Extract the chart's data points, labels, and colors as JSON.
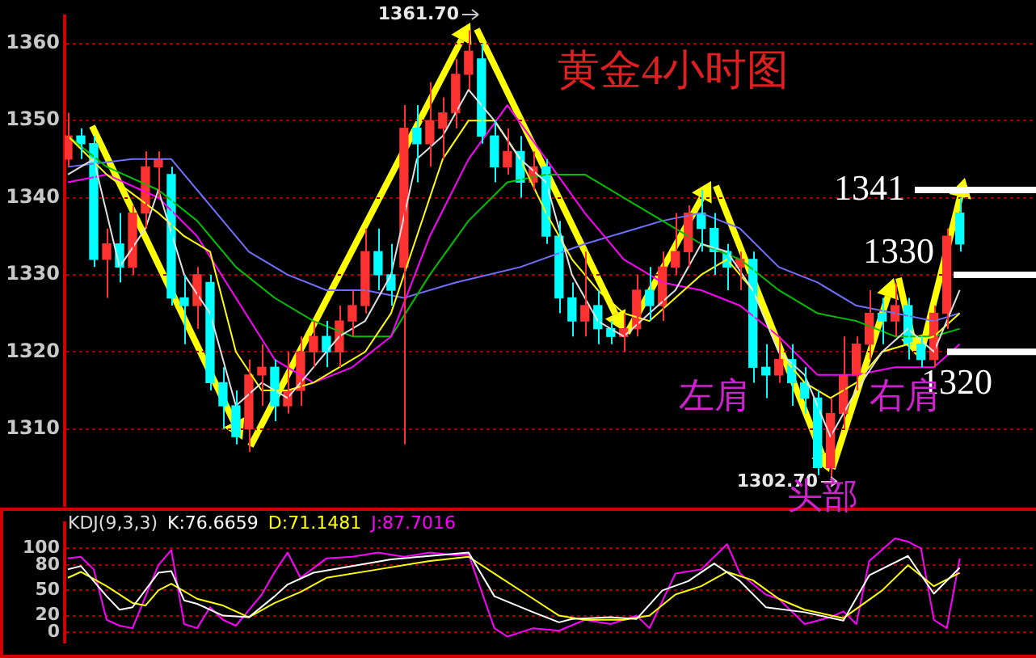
{
  "chart_data": [
    {
      "type": "candlestick",
      "title": "黄金4小时图",
      "tick_labels": "y",
      "grid": "y",
      "ylim": [
        1300,
        1363.5
      ],
      "yticks": [
        1310,
        1320,
        1330,
        1340,
        1350,
        1360
      ],
      "categories": [
        null,
        null,
        null,
        null,
        null,
        null,
        null,
        null,
        null,
        null,
        null,
        null,
        null,
        null,
        null,
        null,
        null,
        null,
        null,
        null,
        null,
        null,
        null,
        null,
        null,
        null,
        null,
        null,
        null,
        null,
        null,
        null,
        null,
        null,
        null,
        null,
        null,
        null,
        null,
        null,
        null,
        null,
        null,
        null,
        null,
        null,
        null,
        null,
        null,
        null,
        null,
        null,
        null,
        null,
        null,
        null,
        null,
        null,
        null,
        null,
        null,
        null,
        null,
        null,
        null,
        null,
        null,
        null,
        null,
        null
      ],
      "ohlc": [
        [
          1345,
          1351,
          1344,
          1348
        ],
        [
          1348,
          1349,
          1345,
          1347
        ],
        [
          1347,
          1348,
          1331,
          1332
        ],
        [
          1332,
          1336,
          1327,
          1334
        ],
        [
          1334,
          1338,
          1329,
          1331
        ],
        [
          1331,
          1339,
          1330,
          1338
        ],
        [
          1338,
          1346,
          1336,
          1344
        ],
        [
          1344,
          1346,
          1340,
          1345
        ],
        [
          1343,
          1344,
          1326,
          1327
        ],
        [
          1327,
          1330,
          1321,
          1326
        ],
        [
          1326,
          1331,
          1323,
          1330
        ],
        [
          1329,
          1330,
          1315,
          1316
        ],
        [
          1316,
          1318,
          1310,
          1313
        ],
        [
          1313,
          1315,
          1308,
          1309
        ],
        [
          1310,
          1319,
          1307,
          1317
        ],
        [
          1317,
          1321,
          1313,
          1318
        ],
        [
          1318,
          1319,
          1311,
          1313
        ],
        [
          1313,
          1320,
          1312,
          1315
        ],
        [
          1315,
          1322,
          1313,
          1320
        ],
        [
          1320,
          1324,
          1318,
          1322
        ],
        [
          1322,
          1324,
          1318,
          1320
        ],
        [
          1320,
          1326,
          1318,
          1324
        ],
        [
          1324,
          1328,
          1322,
          1326
        ],
        [
          1326,
          1336,
          1325,
          1333
        ],
        [
          1333,
          1336,
          1328,
          1330
        ],
        [
          1330,
          1334,
          1326,
          1328
        ],
        [
          1331,
          1352,
          1308,
          1349
        ],
        [
          1349,
          1352,
          1342,
          1347
        ],
        [
          1347,
          1355,
          1344,
          1350
        ],
        [
          1349,
          1353,
          1345,
          1351
        ],
        [
          1351,
          1358,
          1349,
          1356
        ],
        [
          1356,
          1361.7,
          1354,
          1359
        ],
        [
          1358,
          1360,
          1347,
          1348
        ],
        [
          1348,
          1350,
          1342,
          1344
        ],
        [
          1344,
          1349,
          1343,
          1346
        ],
        [
          1346,
          1348,
          1340,
          1342
        ],
        [
          1342,
          1346,
          1341,
          1344
        ],
        [
          1344,
          1345,
          1334,
          1335
        ],
        [
          1335,
          1337,
          1325,
          1327
        ],
        [
          1327,
          1329,
          1322,
          1324
        ],
        [
          1324,
          1333,
          1322,
          1326
        ],
        [
          1326,
          1328,
          1321,
          1323
        ],
        [
          1323,
          1324,
          1321,
          1322
        ],
        [
          1322,
          1325,
          1320,
          1323
        ],
        [
          1323,
          1330,
          1322,
          1328
        ],
        [
          1328,
          1331,
          1324,
          1326
        ],
        [
          1326,
          1333,
          1324,
          1331
        ],
        [
          1331,
          1338,
          1330,
          1333
        ],
        [
          1333,
          1339,
          1331,
          1338
        ],
        [
          1338,
          1341,
          1333,
          1336
        ],
        [
          1336,
          1338,
          1330,
          1333
        ],
        [
          1333,
          1334,
          1328,
          1331
        ],
        [
          1331,
          1333,
          1328,
          1332
        ],
        [
          1332,
          1333,
          1316,
          1318
        ],
        [
          1318,
          1321,
          1314,
          1317
        ],
        [
          1317,
          1322,
          1316,
          1319
        ],
        [
          1319,
          1321,
          1313,
          1316
        ],
        [
          1316,
          1318,
          1312,
          1314
        ],
        [
          1314,
          1315,
          1304,
          1305
        ],
        [
          1305,
          1314,
          1302.7,
          1312
        ],
        [
          1312,
          1322,
          1310,
          1317
        ],
        [
          1317,
          1322,
          1315,
          1321
        ],
        [
          1321,
          1328,
          1319,
          1325
        ],
        [
          1325,
          1327,
          1321,
          1324
        ],
        [
          1324,
          1329,
          1322,
          1326
        ],
        [
          1326,
          1327,
          1319,
          1321
        ],
        [
          1321,
          1322,
          1318,
          1319
        ],
        [
          1319,
          1326,
          1318,
          1325
        ],
        [
          1325,
          1336,
          1323,
          1335
        ],
        [
          1338,
          1340,
          1333,
          1334
        ]
      ],
      "colors": [
        "#ff3232",
        "#00ffff",
        "#00ffff",
        "#ff3232",
        "#00ffff",
        "#ff3232",
        "#ff3232",
        "#ff3232",
        "#00ffff",
        "#00ffff",
        "#ff3232",
        "#00ffff",
        "#00ffff",
        "#00ffff",
        "#ff3232",
        "#ff3232",
        "#00ffff",
        "#ff3232",
        "#ff3232",
        "#ff3232",
        "#00ffff",
        "#ff3232",
        "#ff3232",
        "#ff3232",
        "#00ffff",
        "#00ffff",
        "#ff3232",
        "#00ffff",
        "#ff3232",
        "#ff3232",
        "#ff3232",
        "#ff3232",
        "#00ffff",
        "#00ffff",
        "#ff3232",
        "#00ffff",
        "#ff3232",
        "#00ffff",
        "#00ffff",
        "#00ffff",
        "#ff3232",
        "#00ffff",
        "#00ffff",
        "#ff3232",
        "#ff3232",
        "#00ffff",
        "#ff3232",
        "#ff3232",
        "#ff3232",
        "#00ffff",
        "#00ffff",
        "#00ffff",
        "#ff3232",
        "#00ffff",
        "#00ffff",
        "#ff3232",
        "#00ffff",
        "#00ffff",
        "#00ffff",
        "#ff3232",
        "#ff3232",
        "#ff3232",
        "#ff3232",
        "#00ffff",
        "#ff3232",
        "#00ffff",
        "#00ffff",
        "#ff3232",
        "#ff3232",
        "#00ffff"
      ],
      "series": [
        {
          "type": "line",
          "color": "#e0e0e0",
          "values": [
            1343,
            null,
            1345,
            null,
            1331,
            null,
            1336,
            1341,
            null,
            1330,
            null,
            1325,
            null,
            1313,
            null,
            1316,
            null,
            1314,
            null,
            1318,
            null,
            1322,
            null,
            1324,
            null,
            1330,
            null,
            1345,
            null,
            1348,
            null,
            1354,
            null,
            1350,
            null,
            1345,
            null,
            1342,
            null,
            1330,
            null,
            1324,
            null,
            1322,
            null,
            1325,
            null,
            1328,
            null,
            1334,
            null,
            1333,
            null,
            1328,
            null,
            1320,
            null,
            1317,
            null,
            1309,
            null,
            1315,
            null,
            1320,
            null,
            1323,
            null,
            1320,
            null,
            1328
          ]
        },
        {
          "type": "line",
          "color": "#ffff00",
          "values": [
            1348,
            null,
            null,
            1343,
            null,
            null,
            null,
            1338,
            null,
            1335,
            null,
            1333,
            null,
            1320,
            null,
            1315,
            null,
            1315,
            null,
            1316,
            null,
            1318,
            null,
            1320,
            null,
            1325,
            null,
            1335,
            null,
            1345,
            null,
            1350,
            null,
            1350,
            null,
            1345,
            null,
            1338,
            null,
            1332,
            null,
            1328,
            null,
            1325,
            null,
            1324,
            null,
            1327,
            null,
            1330,
            null,
            1332,
            null,
            1328,
            null,
            1320,
            null,
            1316,
            null,
            1314,
            null,
            1316,
            null,
            1320,
            null,
            1321,
            null,
            1322,
            null,
            1325
          ]
        },
        {
          "type": "line",
          "color": "#ff00ff",
          "values": [
            1342,
            null,
            null,
            1343,
            null,
            null,
            null,
            1340,
            null,
            null,
            1335,
            null,
            null,
            1327,
            null,
            null,
            1319,
            null,
            null,
            1316,
            null,
            null,
            1318,
            null,
            null,
            1322,
            null,
            null,
            1335,
            null,
            null,
            1345,
            null,
            null,
            1352,
            null,
            null,
            1345,
            null,
            null,
            1338,
            null,
            null,
            1332,
            null,
            null,
            1329,
            null,
            null,
            1328,
            null,
            null,
            1326,
            null,
            null,
            1322,
            null,
            null,
            1317,
            null,
            null,
            1317,
            null,
            null,
            1318,
            null,
            null,
            1318,
            null,
            1321
          ]
        },
        {
          "type": "line",
          "color": "#00c000",
          "values": [
            1348,
            null,
            null,
            1344,
            null,
            null,
            null,
            1341,
            null,
            null,
            1337,
            null,
            null,
            1331,
            null,
            null,
            1327,
            null,
            null,
            1324,
            null,
            null,
            1322,
            null,
            null,
            1322,
            null,
            null,
            1330,
            null,
            null,
            1337,
            null,
            null,
            1342,
            null,
            null,
            1343,
            null,
            null,
            1343,
            null,
            null,
            1340,
            null,
            null,
            1337,
            null,
            null,
            1334,
            null,
            null,
            1332,
            null,
            null,
            1328,
            null,
            null,
            1325,
            null,
            null,
            1324,
            null,
            null,
            1322,
            null,
            null,
            1322,
            null,
            1323
          ]
        },
        {
          "type": "line",
          "color": "#7070ff",
          "values": [
            1344,
            null,
            null,
            null,
            null,
            1345,
            null,
            null,
            1345,
            null,
            null,
            1339,
            null,
            null,
            1333,
            null,
            null,
            1330,
            null,
            null,
            1328,
            null,
            null,
            1328,
            null,
            null,
            1327,
            null,
            null,
            null,
            1329,
            null,
            null,
            null,
            null,
            1331,
            null,
            null,
            null,
            null,
            1334,
            null,
            null,
            null,
            null,
            null,
            1337,
            null,
            null,
            1338,
            null,
            null,
            1336,
            null,
            null,
            1331,
            null,
            null,
            1329,
            null,
            null,
            1326,
            null,
            null,
            1325,
            null,
            null,
            1324,
            null,
            1325
          ]
        }
      ],
      "ref_lines": [
        {
          "axis": "y",
          "value": 1341,
          "label": "1341",
          "color": "#ffffff"
        },
        {
          "axis": "y",
          "value": 1330,
          "label": "1330",
          "color": "#ffffff"
        },
        {
          "axis": "y",
          "value": 1320,
          "label": "1320",
          "color": "#ffffff"
        }
      ],
      "annotations": [
        "1361.70",
        "1302.70",
        "左肩",
        "头部",
        "右肩"
      ]
    },
    {
      "type": "line",
      "title": "KDJ(9,3,3)",
      "tick_labels": "y",
      "grid": "y",
      "ylim": [
        -12,
        130
      ],
      "yticks": [
        0,
        20,
        50,
        80,
        100
      ],
      "categories": [
        null,
        null,
        null,
        null,
        null,
        null,
        null,
        null,
        null,
        null,
        null,
        null,
        null,
        null,
        null,
        null,
        null,
        null,
        null,
        null,
        null,
        null,
        null,
        null,
        null,
        null,
        null,
        null,
        null,
        null,
        null,
        null,
        null,
        null,
        null,
        null,
        null,
        null,
        null,
        null,
        null,
        null,
        null,
        null,
        null,
        null,
        null,
        null,
        null,
        null,
        null,
        null,
        null,
        null,
        null,
        null,
        null,
        null,
        null,
        null,
        null,
        null,
        null,
        null,
        null,
        null,
        null,
        null,
        null,
        null
      ],
      "series": [
        {
          "name": "K:76.6659",
          "color": "#ffffff",
          "values": [
            75,
            79,
            null,
            43,
            27,
            30,
            null,
            71,
            73,
            38,
            34,
            null,
            20,
            null,
            18,
            null,
            43,
            57,
            null,
            71,
            null,
            null,
            79,
            null,
            null,
            87,
            null,
            null,
            91,
            null,
            null,
            95,
            null,
            43,
            null,
            null,
            24,
            null,
            12,
            16,
            null,
            null,
            18,
            null,
            16,
            null,
            50,
            null,
            61,
            null,
            82,
            null,
            61,
            null,
            30,
            null,
            null,
            24,
            null,
            null,
            14,
            null,
            68,
            null,
            null,
            91,
            null,
            46,
            null,
            77
          ]
        },
        {
          "name": "D:71.1481",
          "color": "#ffff00",
          "values": [
            65,
            72,
            null,
            55,
            null,
            35,
            32,
            50,
            58,
            null,
            40,
            null,
            32,
            null,
            18,
            null,
            35,
            null,
            48,
            null,
            65,
            null,
            null,
            null,
            75,
            null,
            null,
            null,
            85,
            null,
            null,
            90,
            null,
            70,
            null,
            null,
            40,
            null,
            20,
            null,
            15,
            null,
            null,
            15,
            null,
            20,
            null,
            45,
            null,
            55,
            null,
            72,
            null,
            62,
            null,
            40,
            null,
            27,
            null,
            null,
            17,
            null,
            null,
            50,
            null,
            80,
            null,
            55,
            null,
            71
          ]
        },
        {
          "name": "J:87.7016",
          "color": "#ff00ff",
          "values": [
            88,
            90,
            75,
            15,
            8,
            5,
            null,
            80,
            98,
            10,
            5,
            30,
            15,
            8,
            null,
            45,
            72,
            95,
            65,
            null,
            88,
            null,
            90,
            null,
            95,
            null,
            90,
            null,
            95,
            null,
            92,
            93,
            null,
            5,
            -5,
            null,
            5,
            null,
            2,
            null,
            15,
            null,
            10,
            null,
            20,
            5,
            null,
            70,
            null,
            75,
            null,
            105,
            70,
            null,
            45,
            40,
            null,
            10,
            null,
            18,
            25,
            10,
            85,
            null,
            112,
            108,
            100,
            15,
            5,
            88
          ]
        }
      ]
    }
  ]
}
